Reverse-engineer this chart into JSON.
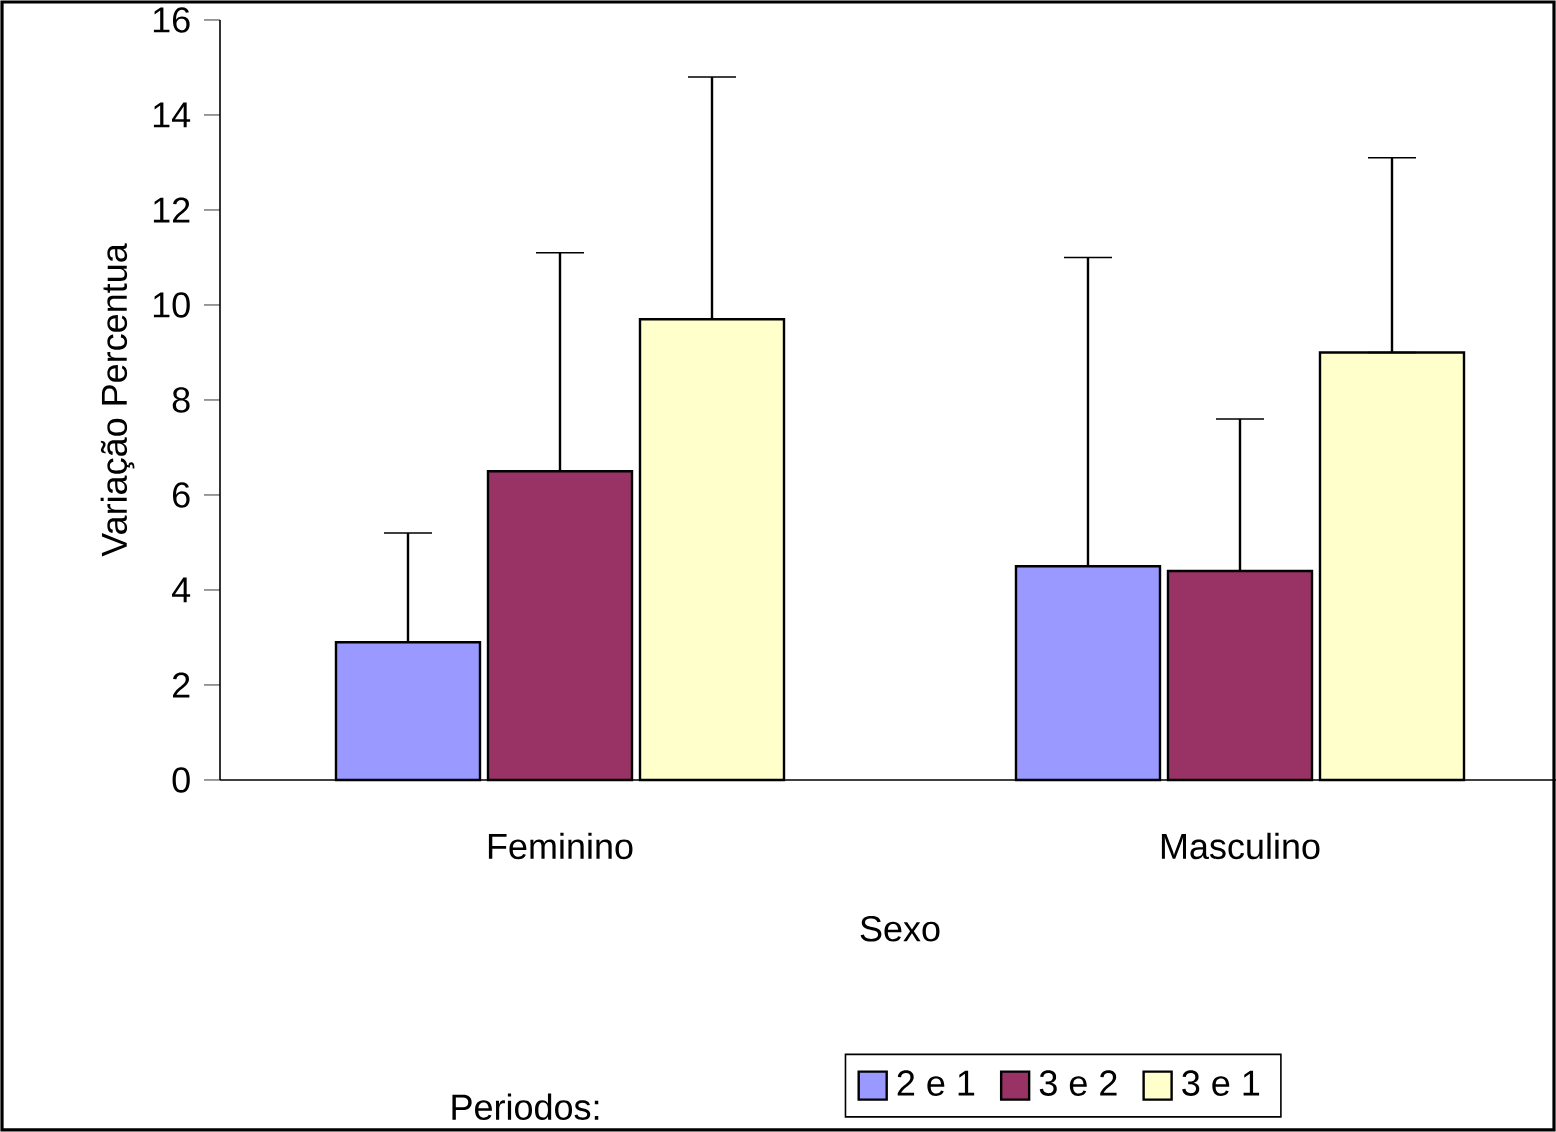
{
  "chart_data": {
    "type": "bar",
    "xlabel": "Sexo",
    "ylabel": "Variação Percentua",
    "legend_title": "Periodos:",
    "categories": [
      "Feminino",
      "Masculino"
    ],
    "series": [
      {
        "name": "2 e 1",
        "color": "#9999ff",
        "values": [
          2.9,
          4.5
        ],
        "errors": [
          [
            2.9,
            5.2
          ],
          [
            4.5,
            11.0
          ]
        ]
      },
      {
        "name": "3 e 2",
        "color": "#993366",
        "values": [
          6.5,
          4.4
        ],
        "errors": [
          [
            6.5,
            11.1
          ],
          [
            4.4,
            7.6
          ]
        ]
      },
      {
        "name": "3 e 1",
        "color": "#ffffcc",
        "values": [
          9.7,
          9.0
        ],
        "errors": [
          [
            9.7,
            14.8
          ],
          [
            9.0,
            13.1
          ]
        ]
      }
    ],
    "ylim": [
      0,
      16
    ],
    "yticks": [
      0,
      2,
      4,
      6,
      8,
      10,
      12,
      14,
      16
    ],
    "legend": "bottom",
    "grid": false
  }
}
